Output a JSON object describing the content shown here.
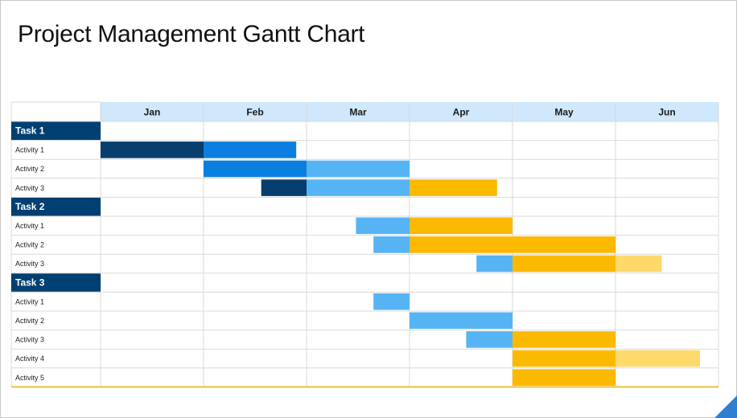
{
  "title": "Project Management Gantt Chart",
  "colors": {
    "header_bg": "#cfe8fb",
    "task_bg": "#003f72",
    "dark_navy": "#073e6d",
    "blue": "#0a7fe0",
    "light_blue": "#56b4f4",
    "gold": "#fbb900",
    "light_gold": "#fdd86a",
    "grid": "#d9d9d9",
    "bottom_line": "#e8c23a"
  },
  "chart_data": {
    "type": "gantt",
    "months": [
      "Jan",
      "Feb",
      "Mar",
      "Apr",
      "May",
      "Jun"
    ],
    "groups": [
      {
        "task": "Task 1",
        "activities": [
          {
            "label": "Activity  1",
            "bars": [
              {
                "start": 0.0,
                "end": 1.0,
                "color": "dark_navy"
              },
              {
                "start": 1.0,
                "end": 1.9,
                "color": "blue"
              }
            ]
          },
          {
            "label": "Activity  2",
            "bars": [
              {
                "start": 1.0,
                "end": 2.0,
                "color": "blue"
              },
              {
                "start": 2.0,
                "end": 3.0,
                "color": "light_blue"
              }
            ]
          },
          {
            "label": "Activity  3",
            "bars": [
              {
                "start": 1.56,
                "end": 2.0,
                "color": "dark_navy"
              },
              {
                "start": 2.0,
                "end": 3.0,
                "color": "light_blue"
              },
              {
                "start": 3.0,
                "end": 3.85,
                "color": "gold"
              }
            ]
          }
        ]
      },
      {
        "task": "Task 2",
        "activities": [
          {
            "label": "Activity  1",
            "bars": [
              {
                "start": 2.48,
                "end": 3.0,
                "color": "light_blue"
              },
              {
                "start": 3.0,
                "end": 4.0,
                "color": "gold"
              }
            ]
          },
          {
            "label": "Activity  2",
            "bars": [
              {
                "start": 2.65,
                "end": 3.0,
                "color": "light_blue"
              },
              {
                "start": 3.0,
                "end": 4.0,
                "color": "gold"
              },
              {
                "start": 4.0,
                "end": 5.0,
                "color": "gold"
              }
            ]
          },
          {
            "label": "Activity  3",
            "bars": [
              {
                "start": 3.65,
                "end": 4.0,
                "color": "light_blue"
              },
              {
                "start": 4.0,
                "end": 5.0,
                "color": "gold"
              },
              {
                "start": 5.0,
                "end": 5.45,
                "color": "light_gold"
              }
            ]
          }
        ]
      },
      {
        "task": "Task 3",
        "activities": [
          {
            "label": "Activity  1",
            "bars": [
              {
                "start": 2.65,
                "end": 3.0,
                "color": "light_blue"
              }
            ]
          },
          {
            "label": "Activity  2",
            "bars": [
              {
                "start": 3.0,
                "end": 4.0,
                "color": "light_blue"
              }
            ]
          },
          {
            "label": "Activity  3",
            "bars": [
              {
                "start": 3.55,
                "end": 4.0,
                "color": "light_blue"
              },
              {
                "start": 4.0,
                "end": 5.0,
                "color": "gold"
              }
            ]
          },
          {
            "label": "Activity  4",
            "bars": [
              {
                "start": 4.0,
                "end": 5.0,
                "color": "gold"
              },
              {
                "start": 5.0,
                "end": 5.82,
                "color": "light_gold"
              }
            ]
          },
          {
            "label": "Activity  5",
            "bars": [
              {
                "start": 4.0,
                "end": 5.0,
                "color": "gold"
              }
            ]
          }
        ]
      }
    ]
  }
}
